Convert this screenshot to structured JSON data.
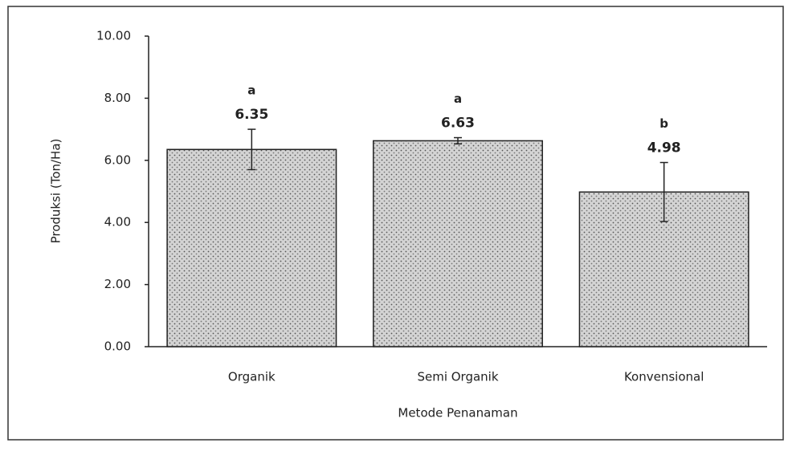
{
  "chart_data": {
    "type": "bar",
    "categories": [
      "Organik",
      "Semi Organik",
      "Konvensional"
    ],
    "values": [
      6.35,
      6.63,
      4.98
    ],
    "errors": [
      0.65,
      0.1,
      0.95
    ],
    "annotations": [
      "a",
      "a",
      "b"
    ],
    "color": "#d0d0d0",
    "x_label": "Metode Penanaman",
    "y_label": "Produksi (Ton/Ha)",
    "ylim": [
      0,
      10
    ],
    "yticks": [
      {
        "value": 0,
        "label": "0.00"
      },
      {
        "value": 2,
        "label": "2.00"
      },
      {
        "value": 4,
        "label": "4.00"
      },
      {
        "value": 6,
        "label": "6.00"
      },
      {
        "value": 8,
        "label": "8.00"
      },
      {
        "value": 10,
        "label": "10.00"
      }
    ],
    "grid": false
  }
}
